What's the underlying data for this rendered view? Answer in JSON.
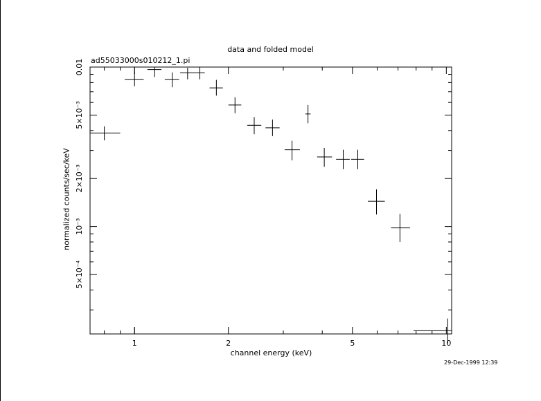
{
  "chart_data": {
    "type": "scatter",
    "title": "data and folded model",
    "subtitle": "ad55033000s010212_1.pi",
    "xlabel": "channel energy (keV)",
    "ylabel": "normalized counts/sec/keV",
    "x_scale": "log",
    "y_scale": "log",
    "xlim": [
      0.72,
      10.4
    ],
    "ylim": [
      0.000212,
      0.01
    ],
    "x_tick_labels": [
      "1",
      "2",
      "5",
      "10"
    ],
    "y_tick_labels": [
      "0.01",
      "5×10⁻³",
      "2×10⁻³",
      "10⁻³",
      "5×10⁻⁴"
    ],
    "grid": false,
    "points": [
      {
        "x": 0.8,
        "xerr": [
          0.72,
          0.9
        ],
        "y": 0.00386,
        "yerr": [
          0.00347,
          0.00425
        ]
      },
      {
        "x": 1.0,
        "xerr": [
          0.93,
          1.07
        ],
        "y": 0.00838,
        "yerr": [
          0.00758,
          0.00926
        ]
      },
      {
        "x": 1.16,
        "xerr": [
          1.1,
          1.22
        ],
        "y": 0.00964,
        "yerr": [
          0.00866,
          0.01
        ]
      },
      {
        "x": 1.32,
        "xerr": [
          1.25,
          1.39
        ],
        "y": 0.00838,
        "yerr": [
          0.00747,
          0.00926
        ]
      },
      {
        "x": 1.48,
        "xerr": [
          1.4,
          1.56
        ],
        "y": 0.00921,
        "yerr": [
          0.00838,
          0.0099
        ]
      },
      {
        "x": 1.62,
        "xerr": [
          1.56,
          1.68
        ],
        "y": 0.00921,
        "yerr": [
          0.00838,
          0.01
        ]
      },
      {
        "x": 1.83,
        "xerr": [
          1.74,
          1.92
        ],
        "y": 0.0074,
        "yerr": [
          0.00662,
          0.00831
        ]
      },
      {
        "x": 2.1,
        "xerr": [
          2.0,
          2.2
        ],
        "y": 0.00578,
        "yerr": [
          0.00514,
          0.00647
        ]
      },
      {
        "x": 2.42,
        "xerr": [
          2.3,
          2.55
        ],
        "y": 0.00431,
        "yerr": [
          0.00379,
          0.00486
        ]
      },
      {
        "x": 2.77,
        "xerr": [
          2.63,
          2.92
        ],
        "y": 0.00416,
        "yerr": [
          0.00369,
          0.00469
        ]
      },
      {
        "x": 3.2,
        "xerr": [
          3.03,
          3.39
        ],
        "y": 0.00303,
        "yerr": [
          0.0026,
          0.00345
        ]
      },
      {
        "x": 3.6,
        "xerr": [
          3.53,
          3.67
        ],
        "y": 0.00508,
        "yerr": [
          0.00444,
          0.00578
        ]
      },
      {
        "x": 4.06,
        "xerr": [
          3.85,
          4.3
        ],
        "y": 0.00273,
        "yerr": [
          0.00237,
          0.00311
        ]
      },
      {
        "x": 4.67,
        "xerr": [
          4.43,
          4.9
        ],
        "y": 0.00264,
        "yerr": [
          0.00229,
          0.00303
        ]
      },
      {
        "x": 5.2,
        "xerr": [
          4.95,
          5.45
        ],
        "y": 0.00264,
        "yerr": [
          0.00229,
          0.00303
        ]
      },
      {
        "x": 5.97,
        "xerr": [
          5.6,
          6.35
        ],
        "y": 0.00144,
        "yerr": [
          0.00119,
          0.00171
        ]
      },
      {
        "x": 7.1,
        "xerr": [
          6.65,
          7.65
        ],
        "y": 0.00098,
        "yerr": [
          0.0008,
          0.0012
        ]
      },
      {
        "x": 10.1,
        "xerr": [
          7.85,
          10.4
        ],
        "y": 0.000222,
        "yerr": [
          0.000185,
          0.000265
        ]
      }
    ]
  },
  "timestamp": "29-Dec-1999 12:39"
}
